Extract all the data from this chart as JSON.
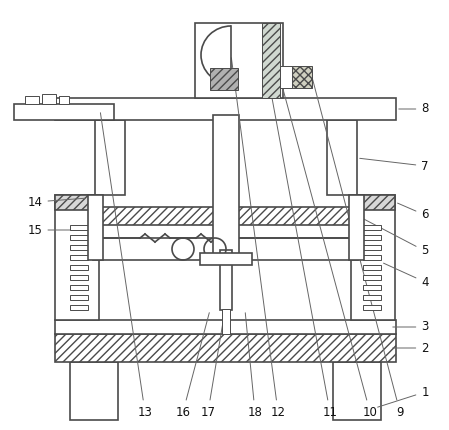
{
  "bg_color": "#ffffff",
  "lc": "#4a4a4a",
  "lw_main": 1.2,
  "lw_thin": 0.7,
  "hatch_gray": "#d0d0d0",
  "hatch_green": "#c8d8c8"
}
